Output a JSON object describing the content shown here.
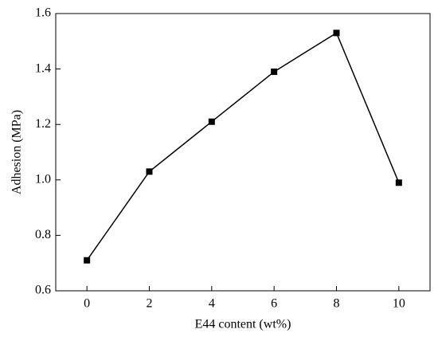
{
  "chart_data": {
    "type": "line",
    "xlabel": "E44 content (wt%)",
    "ylabel": "Adhesion (MPa)",
    "x": [
      0,
      2,
      4,
      6,
      8,
      10
    ],
    "series": [
      {
        "name": "Adhesion",
        "color": "#000000",
        "values": [
          0.71,
          1.03,
          1.21,
          1.39,
          1.53,
          0.99
        ]
      }
    ],
    "xlim": [
      -1,
      11
    ],
    "xticks": [
      0,
      2,
      4,
      6,
      8,
      10
    ],
    "ylim": [
      0.6,
      1.6
    ],
    "yticks": [
      0.6,
      0.8,
      {
        "value": 1,
        "label": "1.0"
      },
      1.2,
      1.4,
      1.6
    ]
  }
}
